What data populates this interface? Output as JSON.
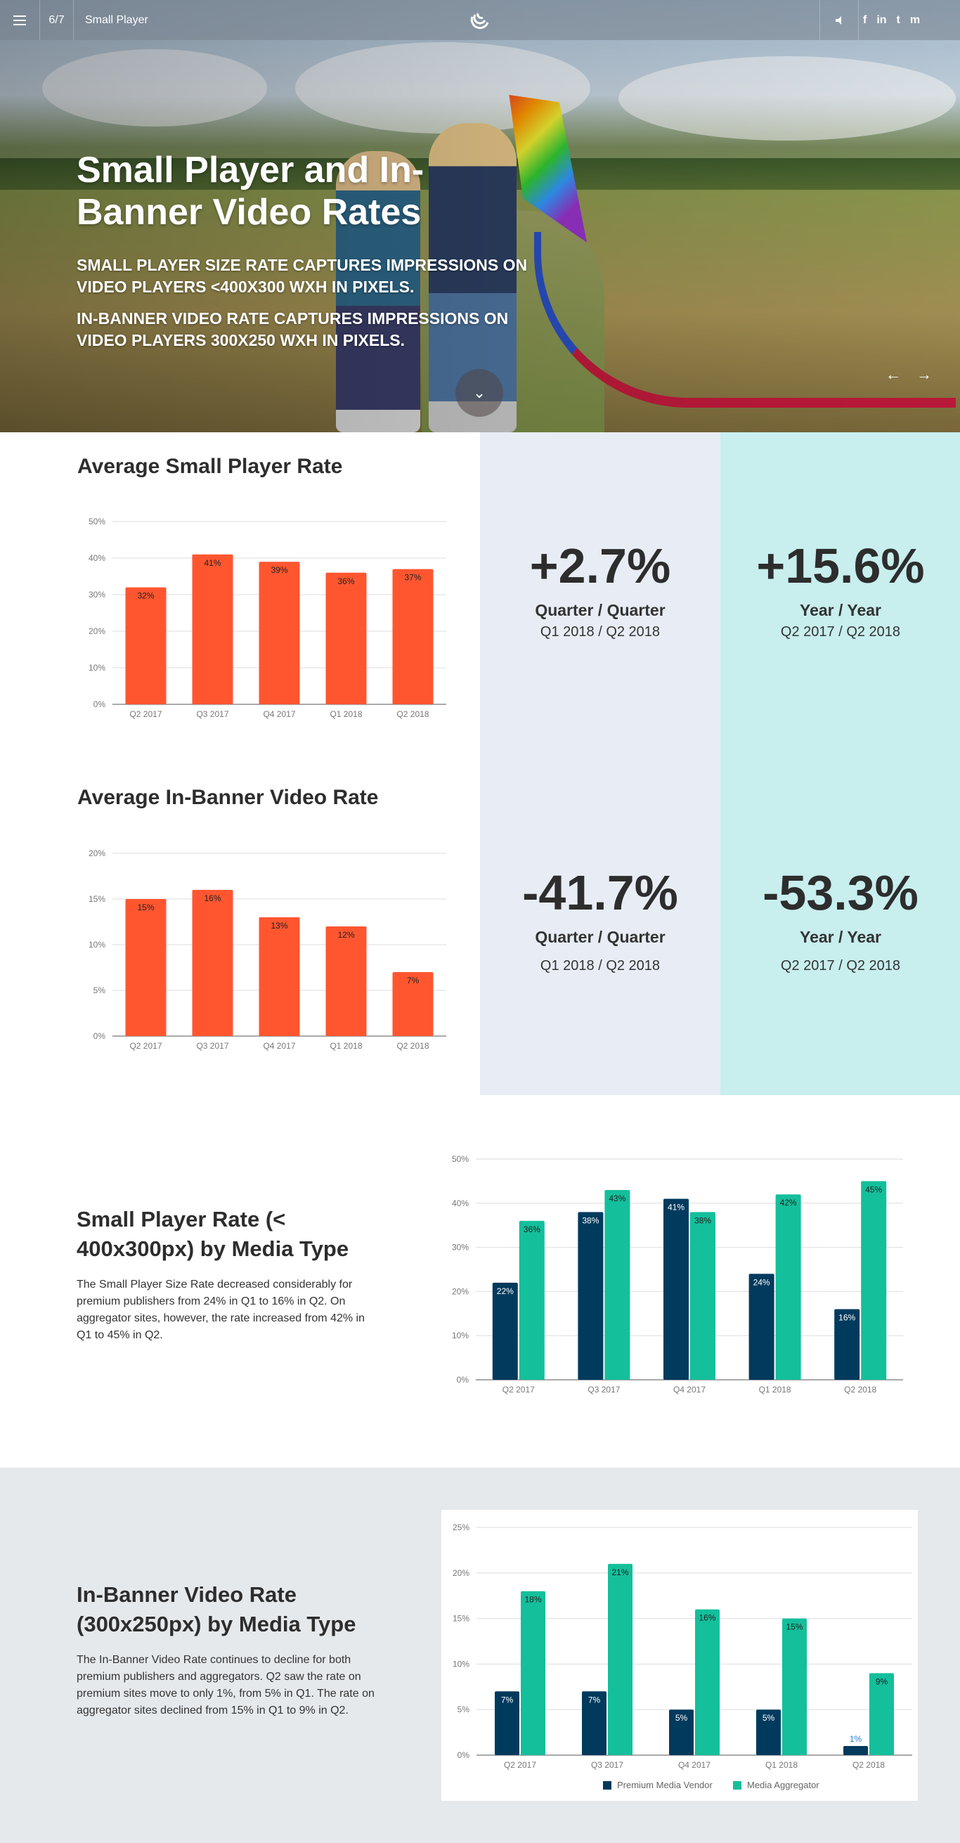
{
  "topbar": {
    "pager": "6/7",
    "title": "Small Player",
    "social_icons": [
      "f",
      "in",
      "t",
      "m"
    ]
  },
  "hero": {
    "heading": "Small Player and In-Banner Video Rates",
    "sub1": "Small player size rate captures impressions on video players <400x300 WxH in pixels.",
    "sub2": "In-banner video rate captures impressions on video players 300x250 WxH in pixels."
  },
  "stats": {
    "small_player_title": "Average Small Player Rate",
    "in_banner_title": "Average In-Banner Video Rate",
    "sp_qq_value": "+2.7%",
    "sp_qq_label": "Quarter / Quarter",
    "sp_qq_period": "Q1 2018 / Q2 2018",
    "sp_yy_value": "+15.6%",
    "sp_yy_label": "Year / Year",
    "sp_yy_period": "Q2 2017 / Q2 2018",
    "ib_qq_value": "-41.7%",
    "ib_qq_label": "Quarter / Quarter",
    "ib_qq_period": "Q1 2018 / Q2 2018",
    "ib_yy_value": "-53.3%",
    "ib_yy_label": "Year / Year",
    "ib_yy_period": "Q2 2017 / Q2 2018"
  },
  "media1": {
    "title": "Small Player Rate (< 400x300px) by Media Type",
    "text": "The Small Player Size Rate decreased considerably for premium publishers from 24% in Q1 to 16% in Q2. On aggregator sites, however, the rate increased from 42% in Q1 to 45% in Q2."
  },
  "media2": {
    "title": "In-Banner Video Rate (300x250px) by Media Type",
    "text": "The In-Banner Video Rate continues to decline for both premium publishers and aggregators. Q2 saw the rate on premium sites move to only 1%, from 5% in Q1. The rate on aggregator sites declined from 15% in Q1 to 9% in Q2."
  },
  "colors": {
    "bar_orange": "#ff5630",
    "premium": "#003a5d",
    "aggregator": "#14bf9b"
  },
  "chart_data": [
    {
      "id": "avg-small-player",
      "type": "bar",
      "categories": [
        "Q2 2017",
        "Q3 2017",
        "Q4 2017",
        "Q1 2018",
        "Q2 2018"
      ],
      "values": [
        32,
        41,
        39,
        36,
        37
      ],
      "data_labels": [
        "32%",
        "41%",
        "39%",
        "36%",
        "37%"
      ],
      "yticks": [
        "0%",
        "10%",
        "20%",
        "30%",
        "40%",
        "50%"
      ],
      "ylim": [
        0,
        50
      ],
      "grid": true
    },
    {
      "id": "avg-in-banner",
      "type": "bar",
      "categories": [
        "Q2 2017",
        "Q3 2017",
        "Q4 2017",
        "Q1 2018",
        "Q2 2018"
      ],
      "values": [
        15,
        16,
        13,
        12,
        7
      ],
      "data_labels": [
        "15%",
        "16%",
        "13%",
        "12%",
        "7%"
      ],
      "yticks": [
        "0%",
        "5%",
        "10%",
        "15%",
        "20%"
      ],
      "ylim": [
        0,
        20
      ],
      "grid": true
    },
    {
      "id": "small-player-media",
      "type": "bar",
      "categories": [
        "Q2 2017",
        "Q3 2017",
        "Q4 2017",
        "Q1 2018",
        "Q2 2018"
      ],
      "series": [
        {
          "name": "Premium Media Vendor",
          "values": [
            22,
            38,
            41,
            24,
            16
          ],
          "data_labels": [
            "22%",
            "38%",
            "41%",
            "24%",
            "16%"
          ]
        },
        {
          "name": "Media Aggregator",
          "values": [
            36,
            43,
            38,
            42,
            45
          ],
          "data_labels": [
            "36%",
            "43%",
            "38%",
            "42%",
            "45%"
          ]
        }
      ],
      "yticks": [
        "0%",
        "10%",
        "20%",
        "30%",
        "40%",
        "50%"
      ],
      "ylim": [
        0,
        50
      ],
      "legend": "bottom",
      "grid": true
    },
    {
      "id": "in-banner-media",
      "type": "bar",
      "categories": [
        "Q2 2017",
        "Q3 2017",
        "Q4 2017",
        "Q1 2018",
        "Q2 2018"
      ],
      "series": [
        {
          "name": "Premium Media Vendor",
          "values": [
            7,
            7,
            5,
            5,
            1
          ],
          "data_labels": [
            "7%",
            "7%",
            "5%",
            "5%",
            "1%"
          ]
        },
        {
          "name": "Media Aggregator",
          "values": [
            18,
            21,
            16,
            15,
            9
          ],
          "data_labels": [
            "18%",
            "21%",
            "16%",
            "15%",
            "9%"
          ]
        }
      ],
      "yticks": [
        "0%",
        "5%",
        "10%",
        "15%",
        "20%",
        "25%"
      ],
      "ylim": [
        0,
        25
      ],
      "legend": "bottom",
      "grid": true
    }
  ]
}
